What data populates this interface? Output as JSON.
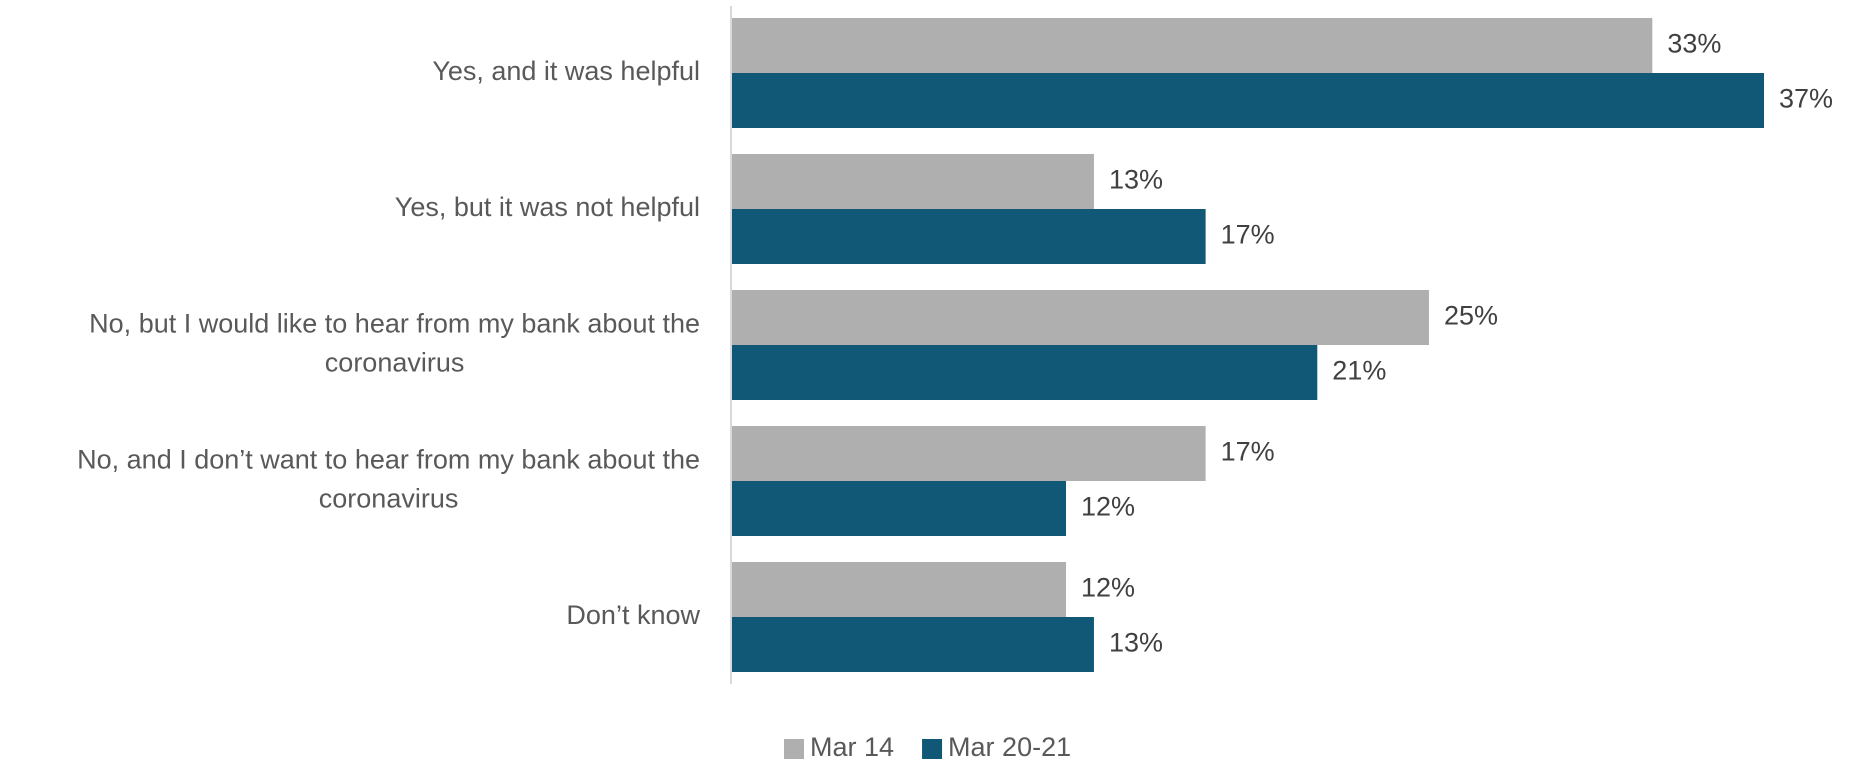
{
  "chart_data": {
    "type": "bar",
    "orientation": "horizontal",
    "categories": [
      "Yes, and it was helpful",
      "Yes, but it was not helpful",
      "No, but I would like to hear from my bank about the coronavirus",
      "No, and I don’t want to hear from my bank about the coronavirus",
      "Don’t know"
    ],
    "category_lines": [
      [
        "Yes, and it was helpful"
      ],
      [
        "Yes, but it was not helpful"
      ],
      [
        "No, but I would like to hear from my bank about the",
        "coronavirus"
      ],
      [
        "No, and I don’t want to hear from my bank about the",
        "coronavirus"
      ],
      [
        "Don’t know"
      ]
    ],
    "series": [
      {
        "name": "Mar 14",
        "color": "#afafaf",
        "values": [
          33,
          13,
          25,
          17,
          12
        ],
        "labels": [
          "33%",
          "13%",
          "25%",
          "17%",
          "12%"
        ]
      },
      {
        "name": "Mar 20-21",
        "color": "#115876",
        "values": [
          37,
          17,
          21,
          12,
          13
        ],
        "labels": [
          "37%",
          "17%",
          "21%",
          "12%",
          "13%"
        ]
      }
    ],
    "xlim": [
      0,
      37
    ],
    "grid": false,
    "legend_position": "bottom-center",
    "title": "",
    "xlabel": "",
    "ylabel": ""
  }
}
